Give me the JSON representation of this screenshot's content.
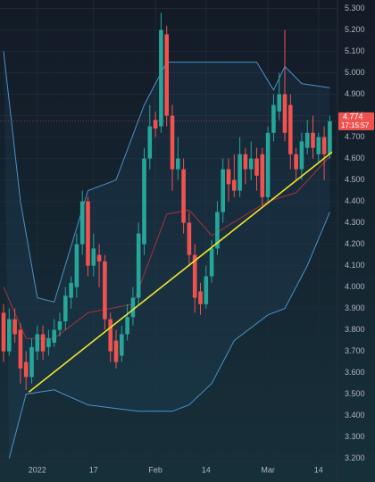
{
  "chart_data": {
    "type": "candlestick",
    "categories": [
      null,
      null,
      null,
      null,
      null,
      null,
      "2022",
      null,
      null,
      null,
      null,
      null,
      null,
      null,
      null,
      null,
      "17",
      null,
      null,
      null,
      null,
      null,
      null,
      null,
      null,
      null,
      null,
      "Feb",
      null,
      null,
      null,
      null,
      null,
      null,
      null,
      null,
      "14",
      null,
      null,
      null,
      null,
      null,
      null,
      null,
      null,
      null,
      null,
      "Mar",
      null,
      null,
      null,
      null,
      null,
      null,
      null,
      null,
      "14",
      null,
      null
    ],
    "open": [
      3.88,
      3.7,
      3.85,
      3.8,
      3.65,
      3.58,
      3.7,
      3.78,
      3.72,
      3.74,
      3.8,
      3.84,
      3.95,
      4.0,
      4.2,
      4.4,
      4.1,
      4.15,
      4.12,
      3.85,
      3.75,
      3.68,
      3.78,
      3.86,
      3.95,
      4.2,
      4.6,
      4.78,
      4.75,
      5.18,
      4.8,
      4.55,
      4.55,
      4.3,
      4.15,
      3.98,
      3.92,
      4.05,
      4.18,
      4.35,
      4.55,
      4.5,
      4.45,
      4.62,
      4.55,
      4.6,
      4.62,
      4.42,
      4.72,
      4.82,
      4.9,
      4.85,
      4.62,
      4.55,
      4.65,
      4.72,
      4.62,
      4.7,
      4.62
    ],
    "high": [
      3.92,
      3.9,
      3.9,
      3.83,
      3.7,
      3.76,
      3.82,
      3.82,
      3.8,
      3.85,
      3.88,
      4.0,
      4.05,
      4.25,
      4.45,
      4.42,
      4.25,
      4.2,
      4.15,
      3.88,
      3.8,
      3.82,
      3.92,
      4.0,
      4.3,
      4.65,
      4.85,
      4.82,
      5.28,
      5.22,
      4.85,
      4.7,
      4.6,
      4.35,
      4.2,
      4.02,
      4.1,
      4.22,
      4.4,
      4.6,
      4.6,
      4.62,
      4.7,
      4.65,
      4.68,
      4.65,
      4.65,
      4.75,
      4.9,
      5.0,
      5.2,
      4.9,
      4.65,
      4.72,
      4.78,
      4.8,
      4.72,
      4.75,
      4.8
    ],
    "low": [
      3.65,
      3.68,
      3.74,
      3.55,
      3.52,
      3.55,
      3.66,
      3.66,
      3.68,
      3.72,
      3.77,
      3.8,
      3.9,
      3.95,
      4.15,
      4.05,
      4.05,
      4.0,
      3.8,
      3.65,
      3.62,
      3.65,
      3.75,
      3.82,
      3.92,
      4.15,
      4.55,
      4.7,
      4.72,
      4.75,
      4.45,
      4.5,
      4.25,
      4.1,
      3.88,
      3.87,
      3.9,
      4.02,
      4.15,
      4.3,
      4.4,
      4.42,
      4.42,
      4.48,
      4.5,
      4.45,
      4.38,
      4.4,
      4.68,
      4.78,
      4.68,
      4.55,
      4.5,
      4.5,
      4.62,
      4.6,
      4.58,
      4.5,
      4.6
    ],
    "close": [
      3.7,
      3.85,
      3.78,
      3.62,
      3.58,
      3.72,
      3.78,
      3.7,
      3.76,
      3.8,
      3.84,
      3.96,
      4.02,
      4.2,
      4.4,
      4.1,
      4.18,
      4.12,
      3.85,
      3.7,
      3.65,
      3.78,
      3.86,
      3.95,
      4.25,
      4.6,
      4.75,
      4.74,
      5.2,
      4.8,
      4.55,
      4.6,
      4.3,
      4.15,
      3.95,
      3.92,
      4.05,
      4.18,
      4.35,
      4.55,
      4.48,
      4.45,
      4.62,
      4.55,
      4.6,
      4.52,
      4.42,
      4.72,
      4.85,
      4.9,
      4.72,
      4.62,
      4.55,
      4.68,
      4.72,
      4.65,
      4.7,
      4.62,
      4.774
    ],
    "up_color": "#26a69a",
    "down_color": "#ef5350",
    "bands": [
      {
        "name": "upper",
        "color": "#4a90c8",
        "x": [
          0,
          3,
          6,
          9,
          15,
          20,
          25,
          29,
          36,
          45,
          48,
          50,
          53,
          58
        ],
        "values": [
          5.1,
          4.4,
          3.95,
          3.93,
          4.45,
          4.5,
          4.85,
          5.05,
          5.05,
          5.05,
          4.92,
          5.03,
          4.95,
          4.93
        ]
      },
      {
        "name": "basis",
        "color": "#a8323a",
        "x": [
          0,
          4,
          9,
          15,
          23,
          29,
          33,
          37,
          42,
          47,
          52,
          58
        ],
        "values": [
          4.0,
          3.76,
          3.76,
          3.88,
          3.92,
          4.34,
          4.36,
          4.24,
          4.32,
          4.4,
          4.44,
          4.61
        ]
      },
      {
        "name": "lower",
        "color": "#4a90c8",
        "x": [
          1,
          4,
          9,
          15,
          24,
          30,
          33,
          37,
          41,
          47,
          50,
          54,
          58
        ],
        "values": [
          3.2,
          3.5,
          3.52,
          3.45,
          3.42,
          3.42,
          3.45,
          3.55,
          3.75,
          3.87,
          3.9,
          4.1,
          4.35
        ]
      }
    ],
    "trendline": {
      "color": "#f2e52a",
      "x": [
        4.5,
        58.4
      ],
      "values": [
        3.51,
        4.63
      ]
    },
    "last_price": {
      "value": 4.774,
      "label": "4.774"
    },
    "countdown": "17:15:57",
    "ylim": [
      3.19,
      5.34
    ],
    "yticks": [
      {
        "value": 3.2,
        "label": "3.200"
      },
      {
        "value": 3.3,
        "label": "3.300"
      },
      {
        "value": 3.4,
        "label": "3.400"
      },
      {
        "value": 3.5,
        "label": "3.500"
      },
      {
        "value": 3.6,
        "label": "3.600"
      },
      {
        "value": 3.7,
        "label": "3.700"
      },
      {
        "value": 3.8,
        "label": "3.800"
      },
      {
        "value": 3.9,
        "label": "3.900"
      },
      {
        "value": 4.0,
        "label": "4.000"
      },
      {
        "value": 4.1,
        "label": "4.100"
      },
      {
        "value": 4.2,
        "label": "4.200"
      },
      {
        "value": 4.3,
        "label": "4.300"
      },
      {
        "value": 4.4,
        "label": "4.400"
      },
      {
        "value": 4.5,
        "label": "4.500"
      },
      {
        "value": 4.6,
        "label": "4.600"
      },
      {
        "value": 4.7,
        "label": "4.700"
      },
      {
        "value": 4.8,
        "label": "4.800"
      },
      {
        "value": 4.9,
        "label": "4.900"
      },
      {
        "value": 5.0,
        "label": "5.000"
      },
      {
        "value": 5.1,
        "label": "5.100"
      },
      {
        "value": 5.2,
        "label": "5.200"
      },
      {
        "value": 5.3,
        "label": "5.300"
      }
    ],
    "grid": true
  }
}
